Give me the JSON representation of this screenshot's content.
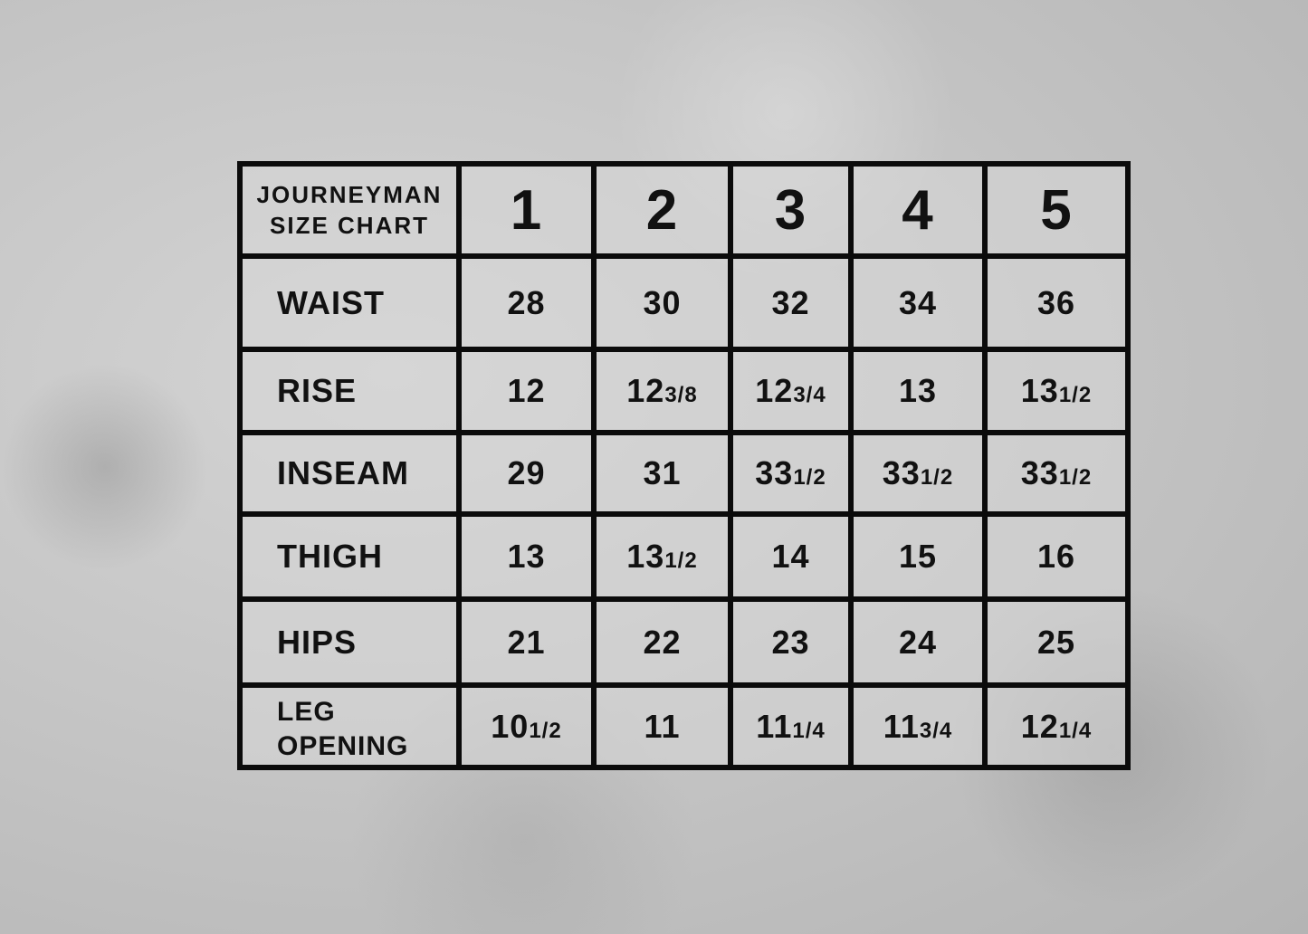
{
  "chart": {
    "title_line1": "JOURNEYMAN",
    "title_line2": "SIZE CHART",
    "sizes": [
      "1",
      "2",
      "3",
      "4",
      "5"
    ],
    "rows": [
      {
        "label": "WAIST",
        "values": [
          {
            "whole": "28",
            "frac": ""
          },
          {
            "whole": "30",
            "frac": ""
          },
          {
            "whole": "32",
            "frac": ""
          },
          {
            "whole": "34",
            "frac": ""
          },
          {
            "whole": "36",
            "frac": ""
          }
        ]
      },
      {
        "label": "RISE",
        "values": [
          {
            "whole": "12",
            "frac": ""
          },
          {
            "whole": "12",
            "frac": "3/8"
          },
          {
            "whole": "12",
            "frac": "3/4"
          },
          {
            "whole": "13",
            "frac": ""
          },
          {
            "whole": "13",
            "frac": "1/2"
          }
        ]
      },
      {
        "label": "INSEAM",
        "values": [
          {
            "whole": "29",
            "frac": ""
          },
          {
            "whole": "31",
            "frac": ""
          },
          {
            "whole": "33",
            "frac": "1/2"
          },
          {
            "whole": "33",
            "frac": "1/2"
          },
          {
            "whole": "33",
            "frac": "1/2"
          }
        ]
      },
      {
        "label": "THIGH",
        "values": [
          {
            "whole": "13",
            "frac": ""
          },
          {
            "whole": "13",
            "frac": "1/2"
          },
          {
            "whole": "14",
            "frac": ""
          },
          {
            "whole": "15",
            "frac": ""
          },
          {
            "whole": "16",
            "frac": ""
          }
        ]
      },
      {
        "label": "HIPS",
        "values": [
          {
            "whole": "21",
            "frac": ""
          },
          {
            "whole": "22",
            "frac": ""
          },
          {
            "whole": "23",
            "frac": ""
          },
          {
            "whole": "24",
            "frac": ""
          },
          {
            "whole": "25",
            "frac": ""
          }
        ]
      },
      {
        "label_line1": "LEG",
        "label_line2": "OPENING",
        "values": [
          {
            "whole": "10",
            "frac": "1/2"
          },
          {
            "whole": "11",
            "frac": ""
          },
          {
            "whole": "11",
            "frac": "1/4"
          },
          {
            "whole": "11",
            "frac": "3/4"
          },
          {
            "whole": "12",
            "frac": "1/4"
          }
        ]
      }
    ]
  }
}
